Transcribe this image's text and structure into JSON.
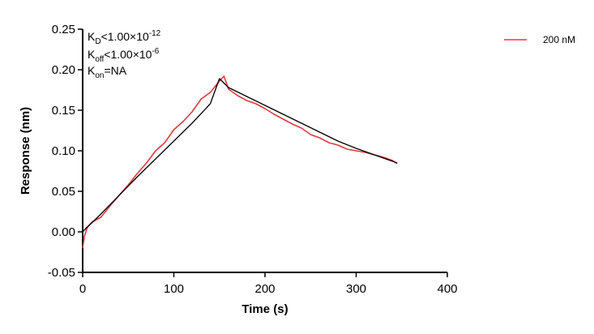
{
  "chart_data": {
    "type": "line",
    "xlabel": "Time (s)",
    "ylabel": "Response (nm)",
    "xlim": [
      0,
      400
    ],
    "ylim": [
      -0.05,
      0.25
    ],
    "x_ticks": [
      "0",
      "100",
      "200",
      "300",
      "400"
    ],
    "y_ticks": [
      "-0.05",
      "0.00",
      "0.05",
      "0.10",
      "0.15",
      "0.20",
      "0.25"
    ],
    "grid": false,
    "legend_position": "top-right",
    "annotations": {
      "kd": {
        "main": "K",
        "sub": "D",
        "rel": "<",
        "mant": "1.00×10",
        "exp": "-12"
      },
      "koff": {
        "main": "K",
        "sub": "off",
        "rel": "<",
        "mant": "1.00×10",
        "exp": "-6"
      },
      "kon": {
        "main": "K",
        "sub": "on",
        "rest": "=NA"
      }
    },
    "series": [
      {
        "name": "200 nM",
        "color": "#e0393e",
        "x": [
          0,
          2,
          5,
          10,
          20,
          30,
          40,
          50,
          60,
          70,
          80,
          90,
          100,
          110,
          120,
          130,
          140,
          150,
          155,
          160,
          170,
          180,
          190,
          200,
          210,
          220,
          230,
          240,
          250,
          260,
          270,
          280,
          290,
          300,
          310,
          320,
          330,
          340,
          345
        ],
        "y": [
          -0.02,
          -0.005,
          0.005,
          0.012,
          0.018,
          0.032,
          0.045,
          0.058,
          0.072,
          0.085,
          0.1,
          0.11,
          0.126,
          0.136,
          0.148,
          0.164,
          0.172,
          0.186,
          0.192,
          0.176,
          0.168,
          0.162,
          0.158,
          0.152,
          0.145,
          0.139,
          0.133,
          0.128,
          0.12,
          0.116,
          0.11,
          0.107,
          0.102,
          0.1,
          0.098,
          0.095,
          0.092,
          0.088,
          0.084
        ]
      },
      {
        "name": "",
        "color": "#000000",
        "x": [
          0,
          5,
          10,
          20,
          40,
          60,
          80,
          100,
          120,
          140,
          150,
          160,
          180,
          200,
          220,
          240,
          260,
          280,
          300,
          320,
          340,
          345
        ],
        "y": [
          0.0,
          0.006,
          0.011,
          0.022,
          0.045,
          0.068,
          0.09,
          0.112,
          0.134,
          0.158,
          0.189,
          0.178,
          0.167,
          0.156,
          0.145,
          0.134,
          0.123,
          0.112,
          0.103,
          0.095,
          0.087,
          0.085
        ]
      }
    ]
  }
}
